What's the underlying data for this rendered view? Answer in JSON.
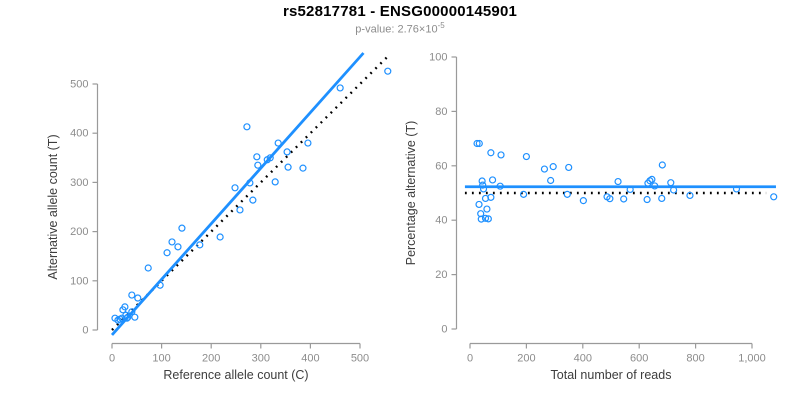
{
  "header": {
    "title": "rs52817781 - ENSG00000145901",
    "subtitle_prefix": "p-value: 2.76×10",
    "subtitle_exponent": "-5"
  },
  "colors": {
    "accent_blue": "#1E90FF",
    "dotted_black": "#000000",
    "axis_line_gray": "#9a9a9a",
    "tick_label_gray": "#8c8c8c",
    "axis_title_dark": "#3d3d3d",
    "title_black": "#000000",
    "subtitle_gray": "#8c8c8c"
  },
  "chart_data": [
    {
      "type": "scatter",
      "name": "allele-counts-scatter",
      "xlabel": "Reference allele count (C)",
      "ylabel": "Alternative allele count (T)",
      "xlim": [
        0,
        500
      ],
      "ylim": [
        0,
        500
      ],
      "xticks": [
        0,
        100,
        200,
        300,
        400,
        500
      ],
      "xtick_labels": [
        "0",
        "100",
        "200",
        "300",
        "400",
        "500"
      ],
      "yticks": [
        0,
        100,
        200,
        300,
        400,
        500
      ],
      "ytick_labels": [
        "0",
        "100",
        "200",
        "300",
        "400",
        "500"
      ],
      "grid": false,
      "point_color": "#1E90FF",
      "points": [
        [
          6,
          24
        ],
        [
          12,
          20
        ],
        [
          16,
          22
        ],
        [
          20,
          24
        ],
        [
          22,
          41
        ],
        [
          26,
          47
        ],
        [
          28,
          30
        ],
        [
          30,
          24
        ],
        [
          32,
          26
        ],
        [
          40,
          37
        ],
        [
          46,
          26
        ],
        [
          40,
          71
        ],
        [
          52,
          65
        ],
        [
          73,
          126
        ],
        [
          97,
          91
        ],
        [
          111,
          157
        ],
        [
          121,
          179
        ],
        [
          133,
          169
        ],
        [
          141,
          207
        ],
        [
          177,
          173
        ],
        [
          218,
          189
        ],
        [
          248,
          289
        ],
        [
          258,
          244
        ],
        [
          272,
          413
        ],
        [
          278,
          299
        ],
        [
          284,
          264
        ],
        [
          292,
          352
        ],
        [
          294,
          335
        ],
        [
          313,
          346
        ],
        [
          319,
          350
        ],
        [
          329,
          301
        ],
        [
          335,
          380
        ],
        [
          353,
          362
        ],
        [
          355,
          331
        ],
        [
          385,
          329
        ],
        [
          395,
          380
        ],
        [
          460,
          492
        ],
        [
          556,
          526
        ]
      ],
      "lines": [
        {
          "name": "identity-line",
          "style": "dotted",
          "color": "#000000",
          "width": 2.4,
          "from": [
            0,
            0
          ],
          "to": [
            560,
            560
          ]
        },
        {
          "name": "fit-line",
          "style": "solid",
          "color": "#1E90FF",
          "width": 2.8,
          "from": [
            0,
            -10
          ],
          "to": [
            507,
            563
          ]
        }
      ]
    },
    {
      "type": "scatter",
      "name": "percentage-vs-reads-scatter",
      "xlabel": "Total number of reads",
      "ylabel": "Percentage alternative (T)",
      "xlim": [
        0,
        1000
      ],
      "ylim": [
        0,
        100
      ],
      "xticks": [
        0,
        200,
        400,
        600,
        800,
        1000
      ],
      "xtick_labels": [
        "0",
        "200",
        "400",
        "600",
        "800",
        "1,000"
      ],
      "yticks": [
        0,
        20,
        40,
        60,
        80,
        100
      ],
      "ytick_labels": [
        "0",
        "20",
        "40",
        "60",
        "80",
        "100"
      ],
      "grid": false,
      "point_color": "#1E90FF",
      "points": [
        [
          25,
          68.2
        ],
        [
          33,
          68.2
        ],
        [
          74,
          64.8
        ],
        [
          110,
          64.0
        ],
        [
          200,
          63.4
        ],
        [
          264,
          58.8
        ],
        [
          295,
          59.7
        ],
        [
          350,
          59.4
        ],
        [
          43,
          54.4
        ],
        [
          80,
          54.8
        ],
        [
          45,
          52.9
        ],
        [
          107,
          52.5
        ],
        [
          48,
          51.5
        ],
        [
          190,
          49.5
        ],
        [
          286,
          54.6
        ],
        [
          55,
          48.0
        ],
        [
          74,
          48.4
        ],
        [
          32,
          45.8
        ],
        [
          60,
          44.1
        ],
        [
          38,
          42.4
        ],
        [
          40,
          40.4
        ],
        [
          55,
          40.7
        ],
        [
          65,
          40.5
        ],
        [
          345,
          49.5
        ],
        [
          402,
          47.2
        ],
        [
          486,
          48.6
        ],
        [
          496,
          47.9
        ],
        [
          525,
          54.2
        ],
        [
          545,
          47.8
        ],
        [
          568,
          51.3
        ],
        [
          628,
          47.6
        ],
        [
          631,
          53.6
        ],
        [
          638,
          54.5
        ],
        [
          645,
          55.0
        ],
        [
          655,
          52.6
        ],
        [
          680,
          48.0
        ],
        [
          682,
          60.3
        ],
        [
          712,
          53.8
        ],
        [
          722,
          51.1
        ],
        [
          780,
          49.1
        ],
        [
          945,
          51.5
        ],
        [
          1077,
          48.6
        ]
      ],
      "lines": [
        {
          "name": "null-line",
          "style": "dotted",
          "color": "#000000",
          "width": 2.4,
          "from": [
            -18,
            50
          ],
          "to": [
            1050,
            50
          ]
        },
        {
          "name": "fit-line",
          "style": "solid",
          "color": "#1E90FF",
          "width": 2.8,
          "from": [
            -18,
            52.3
          ],
          "to": [
            1085,
            52.3
          ]
        }
      ]
    }
  ]
}
